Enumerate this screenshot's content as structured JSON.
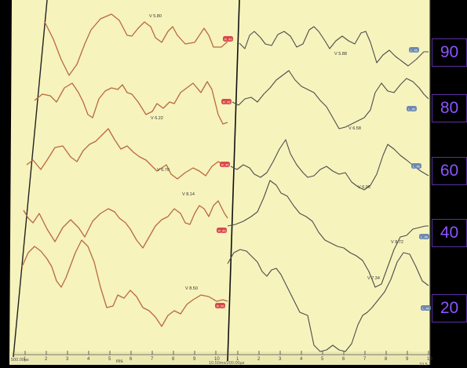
{
  "chart_data": {
    "type": "line",
    "colors": {
      "paper": "#f6f3bd",
      "left_trace": "#b86a3e",
      "right_trace": "#4d4d4d",
      "marker_red": "#d94a4a",
      "marker_blue": "#6f89b0",
      "level_box_text": "#8a55ff"
    },
    "left_panel": {
      "x_label": "ms",
      "x_ticks": [
        "1",
        "2",
        "3",
        "4",
        "5",
        "6",
        "7",
        "8",
        "9",
        "10"
      ],
      "corner_label": "500.00µs"
    },
    "right_panel": {
      "x_ticks": [
        "1",
        "2",
        "3",
        "4",
        "5",
        "6",
        "7",
        "8",
        "9",
        "10"
      ],
      "corner_label": "10.50ms/200.00µs",
      "end_label": "10.5"
    },
    "intensity_levels": [
      "90",
      "80",
      "60",
      "40",
      "20"
    ],
    "left_traces": [
      {
        "level": "90",
        "peak_label": "V 5.80",
        "marker_label": "R_45"
      },
      {
        "level": "80",
        "peak_label": "V 6.22",
        "marker_label": "R_45"
      },
      {
        "level": "60",
        "peak_label": "V 6.70",
        "marker_label": "R_45"
      },
      {
        "level": "40",
        "peak_label": "V 8.14",
        "marker_label": "R_45"
      },
      {
        "level": "20",
        "peak_label": "V 8.50",
        "marker_label": "R_45"
      }
    ],
    "right_traces": [
      {
        "level": "90",
        "peak_label": "V 5.88",
        "marker_label": "L_45"
      },
      {
        "level": "80",
        "peak_label": "V 6.58",
        "marker_label": "L_45"
      },
      {
        "level": "60",
        "peak_label": "V 6.96",
        "marker_label": "L_45"
      },
      {
        "level": "40",
        "peak_label": "V 8.72",
        "marker_label": "L_45"
      },
      {
        "level": "20",
        "peak_label": "V 7.34",
        "marker_label": "L_45"
      }
    ]
  }
}
